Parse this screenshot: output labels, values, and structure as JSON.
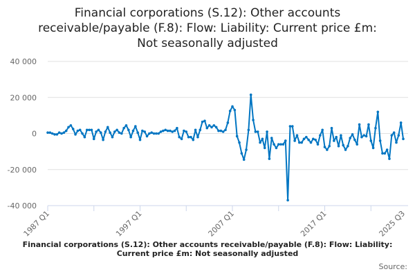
{
  "chart_data": {
    "type": "line",
    "title_lines": [
      "Financial corporations (S.12): Other accounts",
      "receivable/payable (F.8): Flow: Liability: Current price £m:",
      "Not seasonally adjusted"
    ],
    "xlabel": "",
    "ylabel": "",
    "x_start": "1987 Q1",
    "x_end": "2025 Q3",
    "x_tick_labels": [
      "1987 Q1",
      "1997 Q1",
      "2007 Q1",
      "2017 Q1",
      "2025 Q3"
    ],
    "y_tick_labels": [
      "40 000",
      "20 000",
      "0",
      "-20 000",
      "-40 000"
    ],
    "y_ticks": [
      40000,
      20000,
      0,
      -20000,
      -40000
    ],
    "ylim": [
      -40000,
      40000
    ],
    "grid": true,
    "series_color": "#0075c2",
    "values": [
      500,
      500,
      0,
      -500,
      -500,
      500,
      0,
      500,
      1500,
      3500,
      4500,
      2500,
      -500,
      1500,
      2000,
      0,
      -2000,
      2000,
      2000,
      2000,
      -3000,
      1000,
      2000,
      500,
      -3500,
      1000,
      3500,
      500,
      -2000,
      1000,
      2000,
      500,
      0,
      3000,
      4500,
      2000,
      -2000,
      1500,
      4000,
      500,
      -3500,
      1500,
      1000,
      -1500,
      0,
      500,
      0,
      0,
      0,
      1000,
      1500,
      2000,
      1500,
      1500,
      1000,
      1500,
      3000,
      -2000,
      -3000,
      1500,
      1000,
      -2000,
      -2000,
      -3500,
      2000,
      -2000,
      2000,
      6500,
      7000,
      3000,
      4500,
      3500,
      4500,
      3500,
      1500,
      1500,
      1000,
      2000,
      6000,
      12500,
      15000,
      13000,
      -1500,
      -5000,
      -11000,
      -14500,
      -9000,
      2000,
      21500,
      7500,
      1000,
      1000,
      -5000,
      -3000,
      -8000,
      1000,
      -14000,
      -2500,
      -6000,
      -8000,
      -6000,
      -6000,
      -6000,
      -4000,
      -37000,
      4000,
      4000,
      -4000,
      -1000,
      -5000,
      -5000,
      -3000,
      -2000,
      -3500,
      -5000,
      -3000,
      -3500,
      -6000,
      -1000,
      2000,
      -7500,
      -9000,
      -7000,
      3000,
      -4000,
      -2000,
      -7000,
      -1000,
      -6500,
      -9000,
      -7000,
      -2500,
      -500,
      -3500,
      -6000,
      5000,
      -2000,
      -1000,
      -1500,
      5000,
      -4000,
      -8000,
      3000,
      12000,
      -4000,
      -11000,
      -11000,
      -9000,
      -14000,
      -1000,
      500,
      -5000,
      -1000,
      6000,
      -3000
    ]
  },
  "footer": {
    "title": "Financial corporations (S.12): Other accounts receivable/payable (F.8): Flow: Liability: Current price £m: Not seasonally adjusted",
    "source_label": "Source:"
  }
}
